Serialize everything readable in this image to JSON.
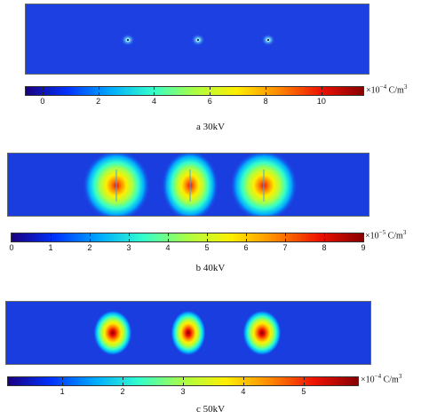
{
  "panels": [
    {
      "caption": "a 30kV",
      "colorbar_exponent": "−4",
      "colorbar_unit": "C/m",
      "colorbar_unit_power": "3",
      "colorbar_prefix": "×10",
      "ticks": [
        "0",
        "2",
        "4",
        "6",
        "8",
        "10"
      ],
      "tick_values": [
        0,
        2,
        4,
        6,
        8,
        10
      ],
      "range": [
        -0.6,
        11.5
      ]
    },
    {
      "caption": "b 40kV",
      "colorbar_exponent": "−5",
      "colorbar_unit": "C/m",
      "colorbar_unit_power": "3",
      "colorbar_prefix": "×10",
      "ticks": [
        "0",
        "1",
        "2",
        "3",
        "4",
        "5",
        "6",
        "7",
        "8",
        "9"
      ],
      "tick_values": [
        0,
        1,
        2,
        3,
        4,
        5,
        6,
        7,
        8,
        9
      ],
      "range": [
        0,
        9
      ]
    },
    {
      "caption": "c 50kV",
      "colorbar_exponent": "−4",
      "colorbar_unit": "C/m",
      "colorbar_unit_power": "3",
      "colorbar_prefix": "×10",
      "ticks": [
        "1",
        "2",
        "3",
        "4",
        "5"
      ],
      "tick_values": [
        1,
        2,
        3,
        4,
        5
      ],
      "range": [
        0.1,
        5.9
      ]
    }
  ],
  "colors": {
    "background_field": "#1a3de0",
    "colormap": [
      "#1a0080",
      "#0033ff",
      "#00aaff",
      "#33ffcc",
      "#aaff44",
      "#ffee00",
      "#ff8800",
      "#ee1100",
      "#880000"
    ]
  }
}
